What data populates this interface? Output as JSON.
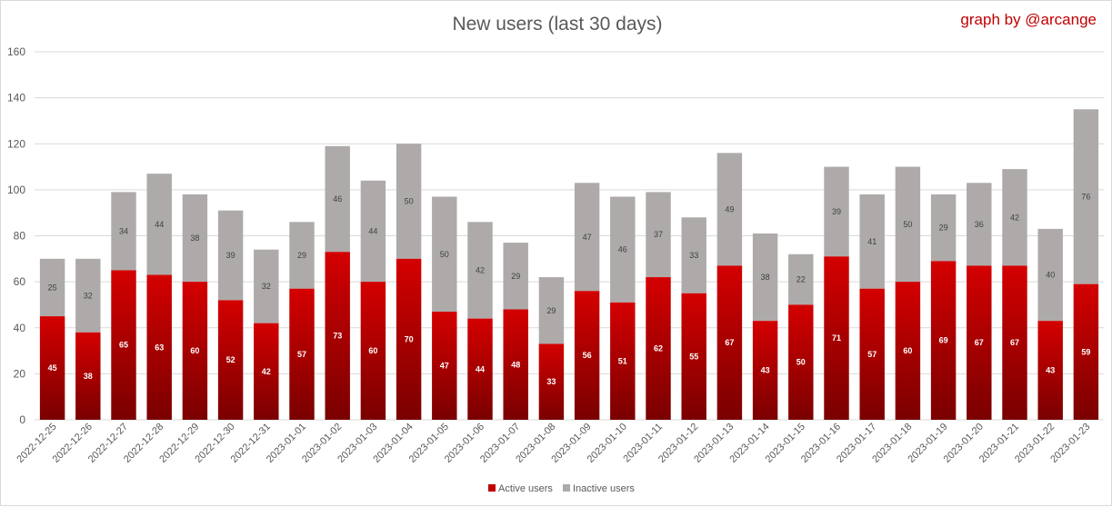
{
  "chart_data": {
    "type": "bar",
    "stacked": true,
    "title": "New users (last 30 days)",
    "credit": "graph by @arcange",
    "categories": [
      "2022-12-25",
      "2022-12-26",
      "2022-12-27",
      "2022-12-28",
      "2022-12-29",
      "2022-12-30",
      "2022-12-31",
      "2023-01-01",
      "2023-01-02",
      "2023-01-03",
      "2023-01-04",
      "2023-01-05",
      "2023-01-06",
      "2023-01-07",
      "2023-01-08",
      "2023-01-09",
      "2023-01-10",
      "2023-01-11",
      "2023-01-12",
      "2023-01-13",
      "2023-01-14",
      "2023-01-15",
      "2023-01-16",
      "2023-01-17",
      "2023-01-18",
      "2023-01-19",
      "2023-01-20",
      "2023-01-21",
      "2023-01-22",
      "2023-01-23"
    ],
    "series": [
      {
        "name": "Active users",
        "color": "#c00000",
        "values": [
          45,
          38,
          65,
          63,
          60,
          52,
          42,
          57,
          73,
          60,
          70,
          47,
          44,
          48,
          33,
          56,
          51,
          62,
          55,
          67,
          43,
          50,
          71,
          57,
          60,
          69,
          67,
          67,
          43,
          59
        ]
      },
      {
        "name": "Inactive users",
        "color": "#aeaaaa",
        "values": [
          25,
          32,
          34,
          44,
          38,
          39,
          32,
          29,
          46,
          44,
          50,
          50,
          42,
          29,
          29,
          47,
          46,
          37,
          33,
          49,
          38,
          22,
          39,
          41,
          50,
          29,
          36,
          42,
          40,
          76
        ]
      }
    ],
    "yticks": [
      0,
      20,
      40,
      60,
      80,
      100,
      120,
      140,
      160
    ],
    "ylim": [
      0,
      160
    ],
    "grid": true,
    "legend_position": "bottom"
  }
}
